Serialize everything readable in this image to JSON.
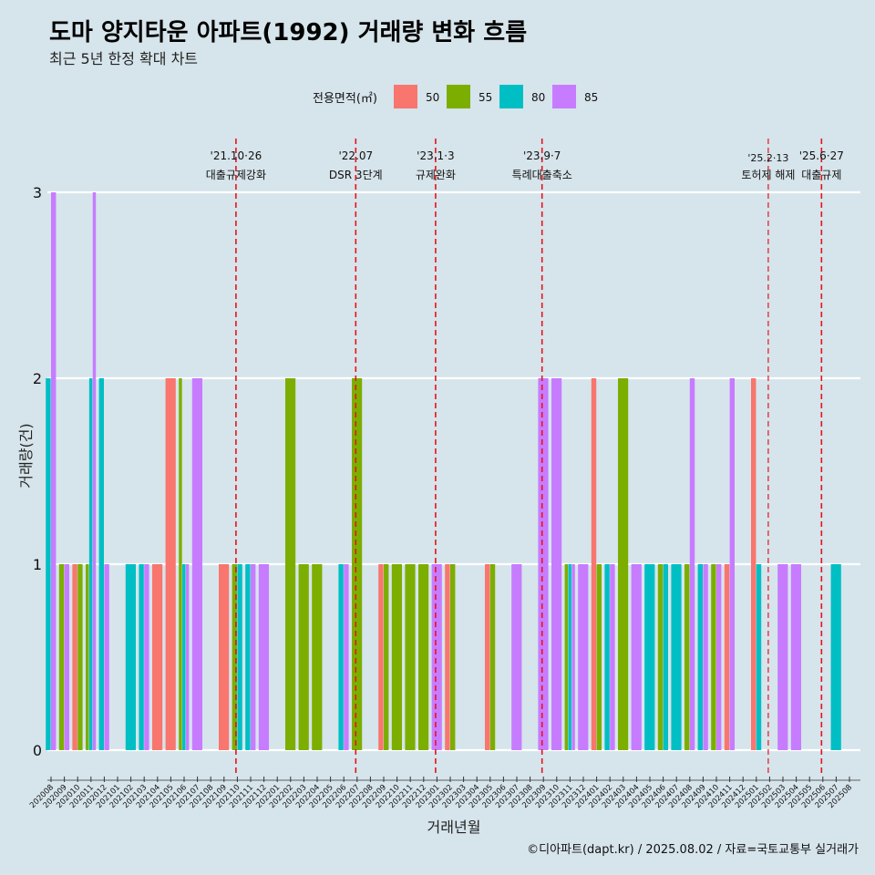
{
  "title": "도마 양지타운 아파트(1992) 거래량 변화 흐름",
  "subtitle": "최근 5년 한정 확대 차트",
  "caption": "©디아파트(dapt.kr) / 2025.08.02 / 자료=국토교통부 실거래가",
  "chart_data": {
    "type": "bar",
    "xlabel": "거래년월",
    "ylabel": "거래량(건)",
    "ylim": [
      0,
      3
    ],
    "yticks": [
      0,
      1,
      2,
      3
    ],
    "grid": true,
    "legend": {
      "title": "전용면적(㎡)",
      "position": "top",
      "entries": [
        {
          "name": "50",
          "color": "#F8766D"
        },
        {
          "name": "55",
          "color": "#7CAE00"
        },
        {
          "name": "80",
          "color": "#00BFC4"
        },
        {
          "name": "85",
          "color": "#C77CFF"
        }
      ]
    },
    "categories": [
      "202008",
      "202009",
      "202010",
      "202011",
      "202012",
      "202101",
      "202102",
      "202103",
      "202104",
      "202105",
      "202106",
      "202107",
      "202108",
      "202109",
      "202110",
      "202111",
      "202112",
      "202201",
      "202202",
      "202203",
      "202204",
      "202205",
      "202206",
      "202207",
      "202208",
      "202209",
      "202210",
      "202211",
      "202212",
      "202301",
      "202302",
      "202303",
      "202304",
      "202305",
      "202306",
      "202307",
      "202308",
      "202309",
      "202310",
      "202311",
      "202312",
      "202401",
      "202402",
      "202403",
      "202404",
      "202405",
      "202406",
      "202407",
      "202408",
      "202409",
      "202410",
      "202411",
      "202412",
      "202501",
      "202502",
      "202503",
      "202504",
      "202505",
      "202506",
      "202507",
      "202508"
    ],
    "series": [
      {
        "name": "50",
        "values": [
          0,
          0,
          1,
          0,
          0,
          0,
          0,
          0,
          1,
          2,
          0,
          0,
          0,
          1,
          0,
          0,
          0,
          0,
          0,
          0,
          0,
          0,
          0,
          0,
          0,
          1,
          0,
          0,
          0,
          0,
          1,
          0,
          0,
          1,
          0,
          0,
          0,
          0,
          0,
          0,
          0,
          2,
          0,
          0,
          0,
          0,
          0,
          0,
          0,
          0,
          0,
          1,
          0,
          2,
          0,
          0,
          0,
          0,
          0,
          0,
          0
        ]
      },
      {
        "name": "55",
        "values": [
          0,
          1,
          1,
          1,
          0,
          0,
          0,
          0,
          0,
          0,
          2,
          0,
          0,
          0,
          1,
          0,
          0,
          0,
          2,
          1,
          1,
          0,
          0,
          2,
          0,
          1,
          1,
          1,
          1,
          0,
          1,
          0,
          0,
          1,
          0,
          0,
          0,
          0,
          0,
          1,
          0,
          1,
          0,
          2,
          0,
          0,
          1,
          0,
          1,
          0,
          1,
          0,
          0,
          0,
          0,
          0,
          0,
          0,
          0,
          0,
          0
        ]
      },
      {
        "name": "80",
        "values": [
          2,
          0,
          0,
          2,
          2,
          0,
          1,
          1,
          0,
          0,
          1,
          0,
          0,
          0,
          1,
          1,
          0,
          0,
          0,
          0,
          0,
          0,
          1,
          0,
          0,
          0,
          0,
          0,
          0,
          0,
          0,
          0,
          0,
          0,
          0,
          0,
          0,
          0,
          0,
          1,
          0,
          0,
          1,
          0,
          0,
          1,
          1,
          1,
          0,
          1,
          0,
          0,
          0,
          1,
          0,
          0,
          0,
          0,
          0,
          1,
          0
        ]
      },
      {
        "name": "85",
        "values": [
          3,
          1,
          0,
          3,
          1,
          0,
          0,
          1,
          0,
          0,
          1,
          2,
          0,
          0,
          0,
          1,
          1,
          0,
          0,
          0,
          0,
          0,
          1,
          0,
          0,
          0,
          0,
          0,
          0,
          1,
          0,
          0,
          0,
          0,
          0,
          1,
          0,
          2,
          2,
          1,
          1,
          0,
          1,
          0,
          1,
          0,
          0,
          0,
          2,
          1,
          1,
          2,
          0,
          0,
          0,
          1,
          1,
          0,
          0,
          0,
          0
        ]
      }
    ],
    "annotations": [
      {
        "date": "'21.10·26",
        "label": "대출규제강화",
        "x": "202110"
      },
      {
        "date": "'22.07",
        "label": "DSR 3단계",
        "x": "202207"
      },
      {
        "date": "'23.1·3",
        "label": "규제완화",
        "x": "202301"
      },
      {
        "date": "'23.9·7",
        "label": "특례대출축소",
        "x": "202309"
      },
      {
        "date": "'25.2·13",
        "label": "토허제 해제",
        "x": "202502"
      },
      {
        "date": "'25.6·27",
        "label": "대출규제",
        "x": "202506"
      }
    ]
  }
}
